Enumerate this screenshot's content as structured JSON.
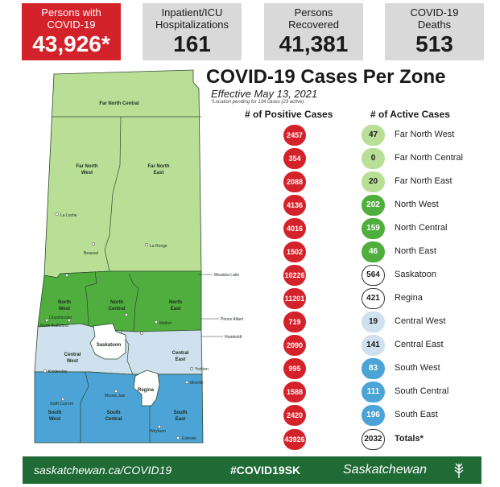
{
  "stats": [
    {
      "label": "Persons with COVID-19",
      "value": "43,926*",
      "style": "red"
    },
    {
      "label": "Inpatient/ICU Hospitalizations",
      "value": "161",
      "style": "grey"
    },
    {
      "label": "Persons Recovered",
      "value": "41,381",
      "style": "grey"
    },
    {
      "label": "COVID-19 Deaths",
      "value": "513",
      "style": "grey"
    }
  ],
  "title": "COVID-19 Cases Per Zone",
  "effective": "Effective May 13, 2021",
  "note": "*Location pending for 134 cases (23 active)",
  "headers": {
    "positive": "# of Positive Cases",
    "active": "# of Active Cases"
  },
  "zones": [
    {
      "name": "Far North West",
      "positive": "2457",
      "active": "47",
      "color": "#b9df97"
    },
    {
      "name": "Far North Central",
      "positive": "354",
      "active": "0",
      "color": "#b9df97"
    },
    {
      "name": "Far North East",
      "positive": "2088",
      "active": "20",
      "color": "#b9df97"
    },
    {
      "name": "North West",
      "positive": "4136",
      "active": "202",
      "color": "#4fae3d"
    },
    {
      "name": "North Central",
      "positive": "4016",
      "active": "159",
      "color": "#4fae3d"
    },
    {
      "name": "North East",
      "positive": "1502",
      "active": "46",
      "color": "#4fae3d"
    },
    {
      "name": "Saskatoon",
      "positive": "10226",
      "active": "564",
      "color": "#ffffff"
    },
    {
      "name": "Regina",
      "positive": "11201",
      "active": "421",
      "color": "#ffffff"
    },
    {
      "name": "Central West",
      "positive": "719",
      "active": "19",
      "color": "#cfe1ee"
    },
    {
      "name": "Central East",
      "positive": "2090",
      "active": "141",
      "color": "#cfe1ee"
    },
    {
      "name": "South West",
      "positive": "995",
      "active": "83",
      "color": "#4ca3d6"
    },
    {
      "name": "South Central",
      "positive": "1588",
      "active": "111",
      "color": "#4ca3d6"
    },
    {
      "name": "South East",
      "positive": "2420",
      "active": "196",
      "color": "#4ca3d6"
    },
    {
      "name": "Totals*",
      "positive": "43926",
      "active": "2032",
      "color": "#ffffff"
    }
  ],
  "map": {
    "zone_labels": {
      "far_north_central": "Far North Central",
      "far_north_west_1": "Far North",
      "far_north_west_2": "West",
      "far_north_east_1": "Far North",
      "far_north_east_2": "East",
      "north_west_1": "North",
      "north_west_2": "West",
      "north_central_1": "North",
      "north_central_2": "Central",
      "north_east_1": "North",
      "north_east_2": "East",
      "saskatoon": "Saskatoon",
      "central_west_1": "Central",
      "central_west_2": "West",
      "central_east_1": "Central",
      "central_east_2": "East",
      "regina": "Regina",
      "south_west_1": "South",
      "south_west_2": "West",
      "south_central_1": "South",
      "south_central_2": "Central",
      "south_east_1": "South",
      "south_east_2": "East"
    },
    "towns": {
      "la_loche": "La Loche",
      "beauval": "Beauval",
      "la_ronge": "La Ronge",
      "meadow_lake": "Meadow Lake",
      "lloydminster": "Lloydminster",
      "north_battleford": "North Battleford",
      "prince_albert": "Prince Albert",
      "melfort": "Melfort",
      "humboldt": "Humboldt",
      "kindersley": "Kindersley",
      "yorkton": "Yorkton",
      "melville": "Melville",
      "moose_jaw": "Moose Jaw",
      "swift_current": "Swift Current",
      "weyburn": "Weyburn",
      "estevan": "Estevan"
    }
  },
  "footer": {
    "website": "saskatchewan.ca/COVID19",
    "hashtag": "#COVID19SK",
    "brand": "Saskatchewan"
  },
  "colors": {
    "red": "#d3222a",
    "light_green": "#b9df97",
    "dark_green": "#4fae3d",
    "light_blue": "#cfe1ee",
    "blue": "#4ca3d6",
    "footer_green": "#1f6a35"
  }
}
